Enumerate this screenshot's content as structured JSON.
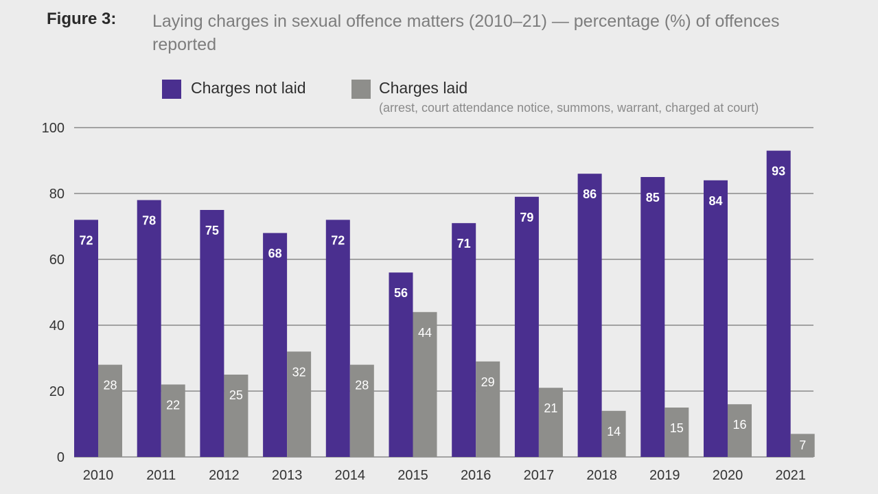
{
  "figure": {
    "label": "Figure 3:",
    "title": "Laying charges in sexual offence matters (2010–21) — percentage (%) of offences reported"
  },
  "legend": {
    "items": [
      {
        "label": "Charges not laid",
        "color": "#4a2f8f"
      },
      {
        "label": "Charges laid",
        "color": "#8e8e8b",
        "note": "(arrest, court attendance notice, summons, warrant, charged at court)"
      }
    ]
  },
  "chart_data": {
    "type": "bar",
    "title": "Laying charges in sexual offence matters (2010–21) — percentage (%) of offences reported",
    "xlabel": "",
    "ylabel": "",
    "categories": [
      "2010",
      "2011",
      "2012",
      "2013",
      "2014",
      "2015",
      "2016",
      "2017",
      "2018",
      "2019",
      "2020",
      "2021"
    ],
    "series": [
      {
        "name": "Charges not laid",
        "color": "#4a2f8f",
        "values": [
          72,
          78,
          75,
          68,
          72,
          56,
          71,
          79,
          86,
          85,
          84,
          93
        ]
      },
      {
        "name": "Charges laid",
        "color": "#8e8e8b",
        "values": [
          28,
          22,
          25,
          32,
          28,
          44,
          29,
          21,
          14,
          15,
          16,
          7
        ]
      }
    ],
    "ylim": [
      0,
      100
    ],
    "yticks": [
      0,
      20,
      40,
      60,
      80,
      100
    ],
    "grid": true,
    "legend_position": "top",
    "data_labels": true
  }
}
